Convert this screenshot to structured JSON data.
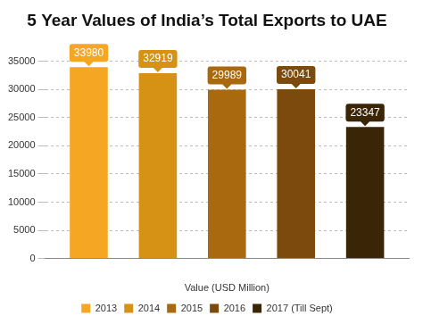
{
  "chart_data": {
    "type": "bar",
    "title": "5 Year Values of India’s Total Exports to UAE",
    "x_label": "Value (USD Million)",
    "categories": [
      null
    ],
    "series": [
      {
        "name": "2013",
        "color": "#f5a623",
        "values": [
          33980
        ]
      },
      {
        "name": "2014",
        "color": "#d69214",
        "values": [
          32919
        ]
      },
      {
        "name": "2015",
        "color": "#a8690f",
        "values": [
          29989
        ]
      },
      {
        "name": "2016",
        "color": "#7b4a0c",
        "values": [
          30041
        ]
      },
      {
        "name": "2017 (Till Sept)",
        "color": "#3b2507",
        "values": [
          23347
        ]
      }
    ],
    "ylim": [
      0,
      35000
    ],
    "yticks": [
      0,
      5000,
      10000,
      15000,
      20000,
      25000,
      30000,
      35000
    ],
    "grid": true,
    "legend": "bottom",
    "data_labels": true
  }
}
